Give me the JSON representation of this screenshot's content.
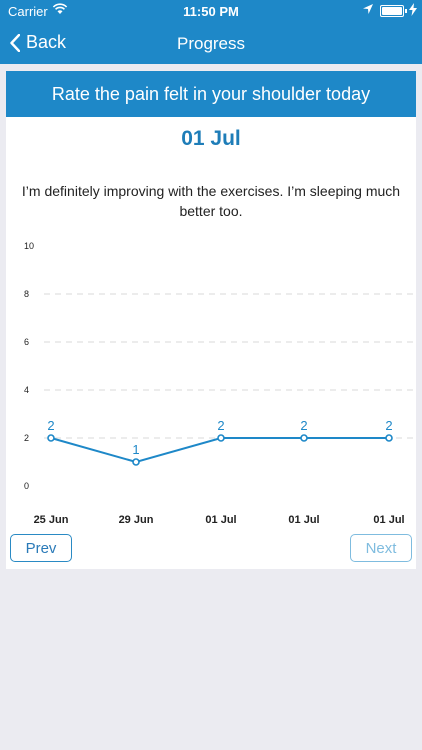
{
  "status_bar": {
    "carrier": "Carrier",
    "time": "11:50 PM",
    "icons": [
      "wifi-icon",
      "location-icon",
      "battery-icon",
      "charging-icon"
    ]
  },
  "nav": {
    "back_label": "Back",
    "title": "Progress"
  },
  "card": {
    "header": "Rate the pain felt in your shoulder today",
    "date": "01 Jul",
    "comment": "I’m definitely improving with the exercises. I’m sleeping much better too."
  },
  "buttons": {
    "prev": "Prev",
    "next": "Next"
  },
  "colors": {
    "accent": "#1e88c8",
    "text_accent": "#1e7db8",
    "background": "#ebebf1"
  },
  "chart_data": {
    "type": "line",
    "categories": [
      "25 Jun",
      "29 Jun",
      "01 Jul",
      "01 Jul",
      "01 Jul"
    ],
    "values": [
      2,
      1,
      2,
      2,
      2
    ],
    "data_labels": [
      "2",
      "1",
      "2",
      "2",
      "2"
    ],
    "yticks": [
      "0",
      "2",
      "4",
      "6",
      "8",
      "10"
    ],
    "ylim": [
      0,
      10
    ],
    "grid": "horizontal-dashed",
    "line_color": "#1e88c8"
  }
}
